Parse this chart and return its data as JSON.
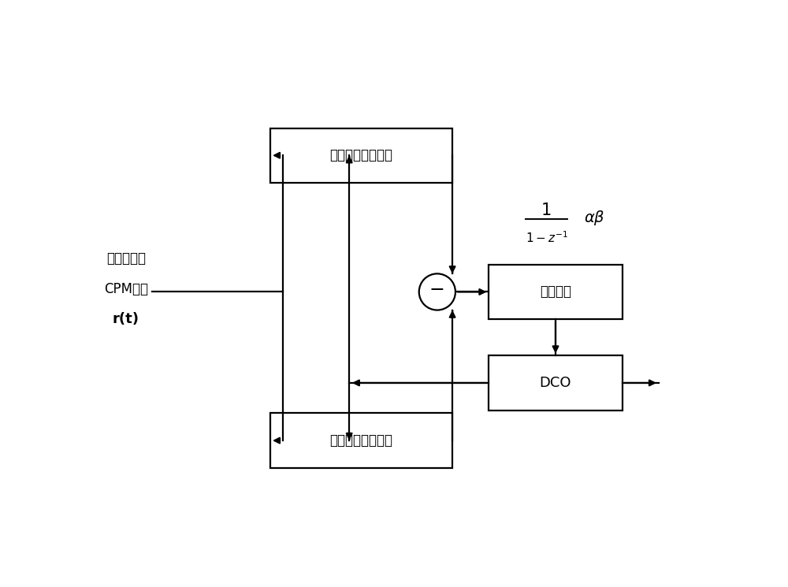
{
  "bg_color": "#ffffff",
  "line_color": "#000000",
  "box_color": "#ffffff",
  "box_edge_color": "#000000",
  "text_color": "#000000",
  "input_label_line1": "接收的基带",
  "input_label_line2": "CPM信号",
  "input_label_line3": "r(t)",
  "box_top_label": "超前支路似然检测",
  "box_bottom_label": "滓后支路似然检测",
  "box_loop_label": "环路滤波",
  "box_dco_label": "DCO",
  "sum_symbol": "−",
  "figsize": [
    10.0,
    7.45
  ],
  "dpi": 100
}
